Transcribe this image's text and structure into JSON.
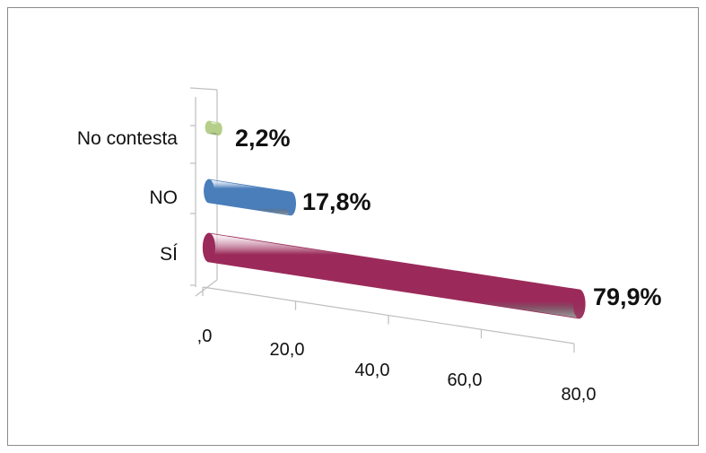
{
  "chart_data": {
    "type": "bar",
    "orientation": "horizontal",
    "style": "3d-cylinder",
    "categories": [
      "No contesta",
      "NO",
      "SÍ"
    ],
    "values": [
      2.2,
      17.8,
      79.9
    ],
    "data_labels": [
      "2,2%",
      "17,8%",
      "79,9%"
    ],
    "colors": [
      "#b5cf8a",
      "#4a7ebb",
      "#9b2a5a"
    ],
    "xlim": [
      0,
      80
    ],
    "x_ticks": [
      0,
      20,
      40,
      60,
      80
    ],
    "x_tick_labels": [
      ",0",
      "20,0",
      "40,0",
      "60,0",
      "80,0"
    ],
    "title": "",
    "xlabel": "",
    "ylabel": "",
    "grid": false,
    "legend": "none"
  }
}
